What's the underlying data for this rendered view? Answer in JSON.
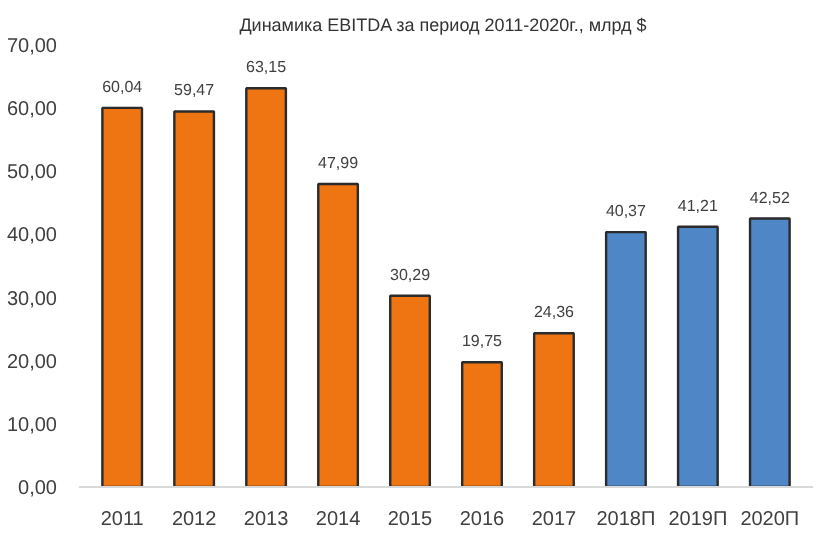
{
  "chart_data": {
    "type": "bar",
    "title": "Динамика EBITDA за период 2011-2020г.,  млрд $",
    "categories": [
      "2011",
      "2012",
      "2013",
      "2014",
      "2015",
      "2016",
      "2017",
      "2018П",
      "2019П",
      "2020П"
    ],
    "values": [
      60.04,
      59.47,
      63.15,
      47.99,
      30.29,
      19.75,
      24.36,
      40.37,
      41.21,
      42.52
    ],
    "colors": [
      "#ef7412",
      "#ef7412",
      "#ef7412",
      "#ef7412",
      "#ef7412",
      "#ef7412",
      "#ef7412",
      "#4f86c6",
      "#4f86c6",
      "#4f86c6"
    ],
    "value_labels": [
      "60,04",
      "59,47",
      "63,15",
      "47,99",
      "30,29",
      "19,75",
      "24,36",
      "40,37",
      "41,21",
      "42,52"
    ],
    "ylim": [
      0,
      70
    ],
    "yticks": [
      {
        "value": 0,
        "label": "0,00"
      },
      {
        "value": 10,
        "label": "10,00"
      },
      {
        "value": 20,
        "label": "20,00"
      },
      {
        "value": 30,
        "label": "30,00"
      },
      {
        "value": 40,
        "label": "40,00"
      },
      {
        "value": 50,
        "label": "50,00"
      },
      {
        "value": 60,
        "label": "60,00"
      },
      {
        "value": 70,
        "label": "70,00"
      }
    ],
    "grid": false
  }
}
